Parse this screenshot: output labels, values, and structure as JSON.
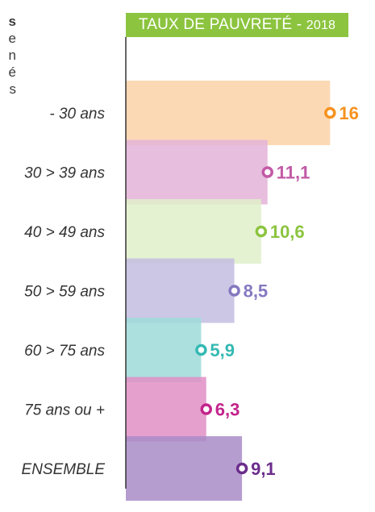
{
  "left_margin_text": [
    "s",
    "e",
    "n",
    "é",
    "s"
  ],
  "title": {
    "main": "TAUX DE PAUVRETÉ",
    "separator": " - ",
    "year": "2018"
  },
  "chart_data": {
    "type": "bar",
    "orientation": "horizontal",
    "title": "TAUX DE PAUVRETÉ - 2018",
    "categories": [
      "- 30 ans",
      "30 > 39 ans",
      "40 > 49 ans",
      "50 > 59 ans",
      "60 > 75 ans",
      "75 ans ou +",
      "ENSEMBLE"
    ],
    "values": [
      16,
      11.1,
      10.6,
      8.5,
      5.9,
      6.3,
      9.1
    ],
    "value_labels": [
      "16",
      "11,1",
      "10,6",
      "8,5",
      "5,9",
      "6,3",
      "9,1"
    ],
    "colors": [
      "#f5921e",
      "#c25aa6",
      "#8cc43f",
      "#8479c0",
      "#35b9b3",
      "#c3238b",
      "#6b2d8c"
    ],
    "fills": [
      "#fcd2a8",
      "#e3b3d8",
      "#dff0ca",
      "#c4bde2",
      "#9edbd8",
      "#e08fc5",
      "#a98cc7"
    ],
    "xlim": [
      0,
      18
    ],
    "grid": false,
    "legend": "none"
  }
}
